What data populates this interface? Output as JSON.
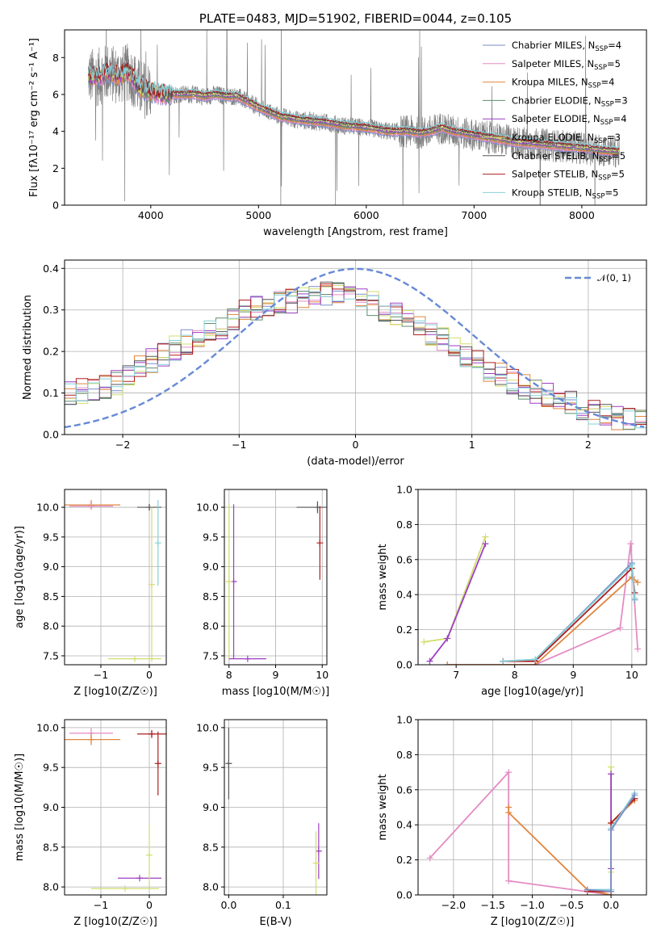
{
  "colors": {
    "chab_miles": "#7b8ec6",
    "salp_miles": "#e48cc4",
    "krou_miles": "#e0863f",
    "chab_elodie": "#5f8e6e",
    "salp_elodie": "#9b3fc3",
    "krou_elodie": "#d2dd6d",
    "chab_stelib": "#555555",
    "salp_stelib": "#b01e1e",
    "krou_stelib": "#85d0d7",
    "data": "#808080",
    "normal": "#6689d6"
  },
  "chart_data": [
    {
      "id": "spectrum",
      "type": "line",
      "title": "PLATE=0483, MJD=51902, FIBERID=0044, z=0.105",
      "xlabel": "wavelength [Angstrom, rest frame]",
      "ylabel": "Flux [fλ10⁻¹⁷ erg cm⁻² s⁻¹ A⁻¹]",
      "xlim": [
        3200,
        8600
      ],
      "ylim": [
        0,
        9.5
      ],
      "xticks": [
        4000,
        5000,
        6000,
        7000,
        8000
      ],
      "yticks": [
        0,
        2,
        4,
        6,
        8
      ],
      "grid": false,
      "legend": "top-right",
      "legend_entries": [
        "Chabrier MILES, N_SSP=4",
        "Salpeter MILES, N_SSP=5",
        "Kroupa MILES, N_SSP=4",
        "Chabrier ELODIE, N_SSP=3",
        "Salpeter ELODIE, N_SSP=4",
        "Kroupa ELODIE, N_SSP=3",
        "Chabrier STELIB, N_SSP=5",
        "Salpeter STELIB, N_SSP=5",
        "Kroupa STELIB, N_SSP=5"
      ],
      "model_continuum": {
        "x": [
          3420,
          3500,
          3600,
          3700,
          3800,
          3900,
          4000,
          4100,
          4200,
          4300,
          4400,
          4500,
          4600,
          4700,
          4800,
          4900,
          5000,
          5200,
          5400,
          5600,
          5800,
          6000,
          6200,
          6400,
          6500,
          6600,
          6700,
          6800,
          7000,
          7200,
          7400,
          7600,
          7800,
          8000,
          8200,
          8350
        ],
        "y": [
          7.0,
          6.9,
          7.2,
          7.0,
          7.2,
          6.3,
          6.2,
          6.0,
          6.0,
          6.0,
          6.0,
          5.9,
          6.0,
          5.9,
          5.9,
          5.6,
          5.3,
          4.8,
          4.6,
          4.5,
          4.3,
          4.2,
          4.0,
          4.0,
          3.9,
          4.0,
          4.2,
          4.0,
          3.8,
          3.6,
          3.4,
          3.3,
          3.2,
          3.1,
          2.95,
          2.9
        ]
      },
      "model_curve_x_range": [
        3420,
        8350
      ]
    },
    {
      "id": "residuals",
      "type": "line",
      "xlabel": "(data-model)/error",
      "ylabel": "Normed distribution",
      "xlim": [
        -2.5,
        2.5
      ],
      "ylim": [
        0,
        0.42
      ],
      "xticks": [
        -2,
        -1,
        0,
        1,
        2
      ],
      "yticks": [
        0.0,
        0.1,
        0.2,
        0.3,
        0.4
      ],
      "grid": true,
      "legend": "top-right",
      "legend_entries": [
        "𝒩(0, 1)"
      ],
      "bin_width": 0.1,
      "hist_envelope": {
        "x": [
          -2.5,
          -2.2,
          -2.0,
          -1.8,
          -1.6,
          -1.4,
          -1.2,
          -1.0,
          -0.8,
          -0.6,
          -0.4,
          -0.2,
          0.0,
          0.2,
          0.4,
          0.6,
          0.8,
          1.0,
          1.2,
          1.4,
          1.6,
          1.8,
          2.0,
          2.2,
          2.5
        ],
        "y": [
          0.1,
          0.11,
          0.13,
          0.17,
          0.2,
          0.23,
          0.25,
          0.29,
          0.31,
          0.32,
          0.33,
          0.34,
          0.33,
          0.31,
          0.28,
          0.25,
          0.22,
          0.18,
          0.15,
          0.12,
          0.1,
          0.08,
          0.06,
          0.04,
          0.03
        ]
      },
      "normal_curve": {
        "mu": 0,
        "sigma": 1
      }
    },
    {
      "id": "age_vs_Z",
      "type": "scatter",
      "xlabel": "Z [log10(Z/Z☉)]",
      "ylabel": "age [log10(age/yr)]",
      "xlim": [
        -1.75,
        0.35
      ],
      "ylim": [
        7.35,
        10.3
      ],
      "xticks": [
        -1,
        0
      ],
      "yticks": [
        7.5,
        8.0,
        8.5,
        9.0,
        9.5,
        10.0
      ],
      "grid": true,
      "points": [
        {
          "x": -1.2,
          "y": 10.04,
          "xerr": 0.6,
          "yerr": 0.08,
          "series": "krou_miles"
        },
        {
          "x": -1.2,
          "y": 10.02,
          "xerr": 0.45,
          "yerr": 0.05,
          "series": "salp_miles"
        },
        {
          "x": 0.0,
          "y": 10.0,
          "xerr": 0.25,
          "yerr": 0.05,
          "series": "chab_stelib"
        },
        {
          "x": 0.18,
          "y": 9.4,
          "xerr": 0.0,
          "yerr": 0.72,
          "series": "krou_stelib"
        },
        {
          "x": 0.05,
          "y": 8.7,
          "xerr": 0.0,
          "yerr": 1.3,
          "series": "krou_elodie"
        },
        {
          "x": -0.3,
          "y": 7.45,
          "xerr": 0.55,
          "yerr": 0.0,
          "series": "krou_elodie"
        }
      ]
    },
    {
      "id": "age_vs_mass",
      "type": "scatter",
      "xlabel": "mass [log10(M/M☉)]",
      "ylabel": "",
      "xlim": [
        7.9,
        10.1
      ],
      "ylim": [
        7.35,
        10.3
      ],
      "xticks": [
        8,
        9,
        10
      ],
      "yticks": [
        7.5,
        8.0,
        8.5,
        9.0,
        9.5,
        10.0
      ],
      "grid": true,
      "points": [
        {
          "x": 9.9,
          "y": 10.0,
          "xerr": 0.45,
          "yerr": 0.1,
          "series": "chab_stelib"
        },
        {
          "x": 9.95,
          "y": 9.4,
          "xerr": 0.0,
          "yerr": 0.62,
          "series": "salp_stelib"
        },
        {
          "x": 8.1,
          "y": 8.75,
          "xerr": 0.0,
          "yerr": 1.3,
          "series": "salp_elodie"
        },
        {
          "x": 8.0,
          "y": 8.75,
          "xerr": 0.0,
          "yerr": 1.3,
          "series": "krou_elodie"
        },
        {
          "x": 8.4,
          "y": 7.45,
          "xerr": 0.4,
          "yerr": 0.0,
          "series": "salp_elodie"
        }
      ]
    },
    {
      "id": "weight_vs_age",
      "type": "line",
      "xlabel": "age [log10(age/yr)]",
      "ylabel": "mass weight",
      "xlim": [
        6.35,
        10.25
      ],
      "ylim": [
        0,
        1.0
      ],
      "xticks": [
        7,
        8,
        9,
        10
      ],
      "yticks": [
        0.0,
        0.2,
        0.4,
        0.6,
        0.8,
        1.0
      ],
      "grid": true,
      "series": [
        {
          "key": "krou_elodie",
          "x": [
            6.45,
            6.85,
            7.5
          ],
          "y": [
            0.13,
            0.15,
            0.73
          ]
        },
        {
          "key": "salp_elodie",
          "x": [
            6.55,
            6.85,
            7.5
          ],
          "y": [
            0.02,
            0.15,
            0.69
          ]
        },
        {
          "key": "salp_miles",
          "x": [
            6.85,
            8.35,
            9.8,
            9.98,
            10.1
          ],
          "y": [
            0.0,
            0.0,
            0.21,
            0.69,
            0.09
          ]
        },
        {
          "key": "krou_miles",
          "x": [
            6.85,
            8.35,
            10.0,
            10.1
          ],
          "y": [
            0.0,
            0.0,
            0.5,
            0.47
          ]
        },
        {
          "key": "chab_miles",
          "x": [
            7.8,
            8.35,
            10.0,
            10.05
          ],
          "y": [
            0.02,
            0.03,
            0.58,
            0.37
          ]
        },
        {
          "key": "salp_stelib",
          "x": [
            7.8,
            8.35,
            10.0,
            10.05
          ],
          "y": [
            0.02,
            0.02,
            0.55,
            0.41
          ]
        },
        {
          "key": "krou_stelib",
          "x": [
            7.8,
            8.35,
            10.0,
            10.05
          ],
          "y": [
            0.02,
            0.03,
            0.57,
            0.38
          ]
        }
      ]
    },
    {
      "id": "mass_vs_Z",
      "type": "scatter",
      "xlabel": "Z [log10(Z/Z☉)]",
      "ylabel": "mass [log10(M/M☉)]",
      "xlim": [
        -1.75,
        0.35
      ],
      "ylim": [
        7.9,
        10.1
      ],
      "xticks": [
        -1,
        0
      ],
      "yticks": [
        8.0,
        8.5,
        9.0,
        9.5,
        10.0
      ],
      "grid": true,
      "points": [
        {
          "x": -1.2,
          "y": 9.93,
          "xerr": 0.45,
          "yerr": 0.07,
          "series": "salp_miles"
        },
        {
          "x": -1.2,
          "y": 9.85,
          "xerr": 0.6,
          "yerr": 0.07,
          "series": "krou_miles"
        },
        {
          "x": 0.05,
          "y": 9.92,
          "xerr": 0.3,
          "yerr": 0.05,
          "series": "salp_stelib"
        },
        {
          "x": 0.18,
          "y": 9.55,
          "xerr": 0.0,
          "yerr": 0.4,
          "series": "salp_stelib"
        },
        {
          "x": -0.2,
          "y": 8.11,
          "xerr": 0.45,
          "yerr": 0.0,
          "series": "salp_elodie"
        },
        {
          "x": -0.5,
          "y": 7.98,
          "xerr": 0.7,
          "yerr": 0.0,
          "series": "krou_elodie"
        },
        {
          "x": 0.0,
          "y": 8.4,
          "xerr": 0.0,
          "yerr": 0.4,
          "series": "krou_elodie"
        }
      ]
    },
    {
      "id": "mass_vs_EBV",
      "type": "scatter",
      "xlabel": "E(B-V)",
      "ylabel": "",
      "xlim": [
        -0.008,
        0.18
      ],
      "ylim": [
        7.9,
        10.1
      ],
      "xticks": [
        0.0,
        0.1
      ],
      "yticks": [
        8.0,
        8.5,
        9.0,
        9.5,
        10.0
      ],
      "grid": true,
      "points": [
        {
          "x": 0.0,
          "y": 9.55,
          "xerr": 0.0,
          "yerr": 0.45,
          "series": "chab_stelib"
        },
        {
          "x": 0.165,
          "y": 8.45,
          "xerr": 0.0,
          "yerr": 0.35,
          "series": "salp_elodie"
        },
        {
          "x": 0.16,
          "y": 8.3,
          "xerr": 0.0,
          "yerr": 0.4,
          "series": "krou_elodie"
        }
      ]
    },
    {
      "id": "weight_vs_Z",
      "type": "line",
      "xlabel": "Z [log10(Z/Z☉)]",
      "ylabel": "mass weight",
      "xlim": [
        -2.45,
        0.45
      ],
      "ylim": [
        0,
        1.0
      ],
      "xticks": [
        -2.0,
        -1.5,
        -1.0,
        -0.5,
        0.0
      ],
      "yticks": [
        0.0,
        0.2,
        0.4,
        0.6,
        0.8,
        1.0
      ],
      "grid": true,
      "series": [
        {
          "key": "salp_miles",
          "x": [
            -2.3,
            -1.3,
            -1.3,
            0.0
          ],
          "y": [
            0.21,
            0.7,
            0.08,
            0.0
          ]
        },
        {
          "key": "krou_miles",
          "x": [
            -1.3,
            -1.3,
            -0.3,
            0.0,
            0.0,
            0.3
          ],
          "y": [
            0.5,
            0.47,
            0.03,
            0.0,
            0.41,
            0.54
          ]
        },
        {
          "key": "krou_elodie",
          "x": [
            0.0,
            0.0,
            0.0
          ],
          "y": [
            0.73,
            0.15,
            0.13
          ]
        },
        {
          "key": "salp_elodie",
          "x": [
            0.0,
            0.0
          ],
          "y": [
            0.69,
            0.15
          ]
        },
        {
          "key": "salp_stelib",
          "x": [
            -0.3,
            0.0,
            0.0,
            0.3
          ],
          "y": [
            0.02,
            0.02,
            0.41,
            0.55
          ]
        },
        {
          "key": "krou_stelib",
          "x": [
            -0.3,
            0.0,
            0.0,
            0.3
          ],
          "y": [
            0.03,
            0.03,
            0.38,
            0.58
          ]
        },
        {
          "key": "chab_miles",
          "x": [
            -0.3,
            0.0,
            0.0,
            0.3
          ],
          "y": [
            0.03,
            0.02,
            0.37,
            0.57
          ]
        }
      ]
    }
  ]
}
